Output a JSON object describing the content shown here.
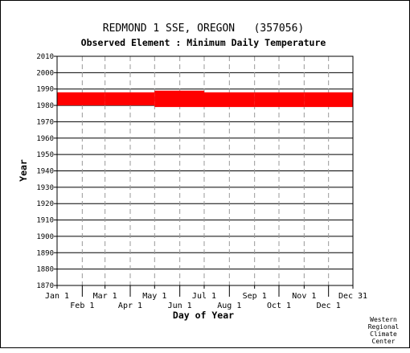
{
  "chart_data": {
    "type": "bar",
    "title": "REDMOND 1 SSE, OREGON   (357056)",
    "subtitle": "Observed Element : Minimum Daily Temperature",
    "xlabel": "Day of Year",
    "ylabel": "Year",
    "ylim": [
      1870,
      2010
    ],
    "xlim": [
      1,
      365
    ],
    "grid": true,
    "y_ticks": [
      1870,
      1880,
      1890,
      1900,
      1910,
      1920,
      1930,
      1940,
      1950,
      1960,
      1970,
      1980,
      1990,
      2000,
      2010
    ],
    "x_ticks_top": [
      {
        "label": "Jan 1",
        "day": 1
      },
      {
        "label": "Mar 1",
        "day": 60
      },
      {
        "label": "May 1",
        "day": 121
      },
      {
        "label": "Jul 1",
        "day": 182
      },
      {
        "label": "Sep 1",
        "day": 244
      },
      {
        "label": "Nov 1",
        "day": 305
      },
      {
        "label": "Dec 31",
        "day": 365
      }
    ],
    "x_ticks_bottom": [
      {
        "label": "Feb 1",
        "day": 32
      },
      {
        "label": "Apr 1",
        "day": 91
      },
      {
        "label": "Jun 1",
        "day": 152
      },
      {
        "label": "Aug 1",
        "day": 213
      },
      {
        "label": "Oct 1",
        "day": 274
      },
      {
        "label": "Dec 1",
        "day": 335
      }
    ],
    "series": [
      {
        "color": "#ff0000",
        "segments": [
          {
            "start_day": 1,
            "end_day": 60,
            "start_year": 1980,
            "end_year": 1988
          },
          {
            "start_day": 60,
            "end_day": 121,
            "start_year": 1980,
            "end_year": 1988
          },
          {
            "start_day": 121,
            "end_day": 182,
            "start_year": 1979,
            "end_year": 1989
          },
          {
            "start_day": 182,
            "end_day": 244,
            "start_year": 1979,
            "end_year": 1988
          },
          {
            "start_day": 244,
            "end_day": 305,
            "start_year": 1979,
            "end_year": 1988
          },
          {
            "start_day": 305,
            "end_day": 365,
            "start_year": 1979,
            "end_year": 1988
          }
        ]
      }
    ]
  },
  "credit": [
    "Western",
    "Regional",
    "Climate",
    "Center"
  ]
}
